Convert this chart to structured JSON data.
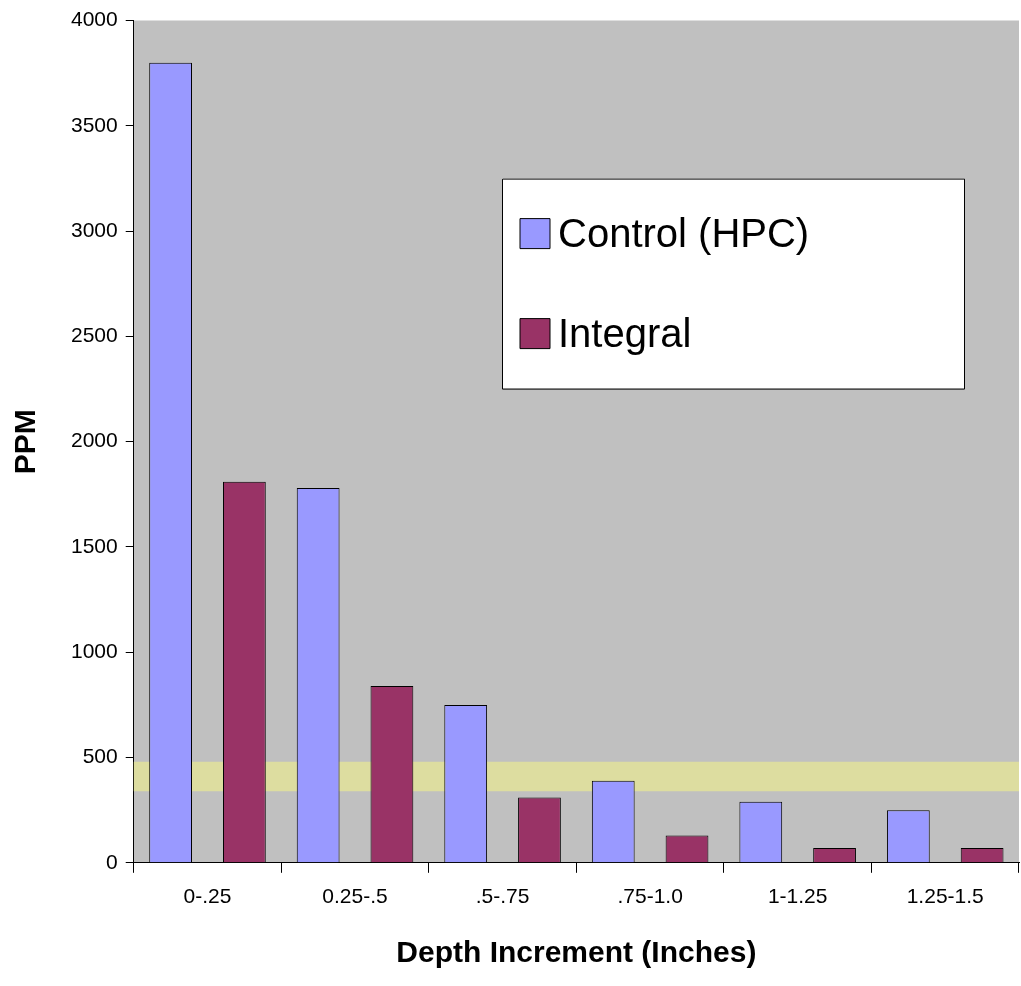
{
  "chart_data": {
    "type": "bar",
    "xlabel": "Depth Increment (Inches)",
    "ylabel": "PPM",
    "categories": [
      "0-.25",
      "0.25-.5",
      ".5-.75",
      ".75-1.0",
      "1-1.25",
      "1.25-1.5"
    ],
    "series": [
      {
        "name": "Control (HPC)",
        "color": "#9999ff",
        "values": [
          3800,
          1780,
          750,
          390,
          290,
          250
        ]
      },
      {
        "name": "Integral",
        "color": "#993366",
        "values": [
          1810,
          840,
          310,
          130,
          70,
          70
        ]
      }
    ],
    "ylim": [
      0,
      4000
    ],
    "yticks": [
      0,
      500,
      1000,
      1500,
      2000,
      2500,
      3000,
      3500,
      4000
    ],
    "bands": [
      {
        "axis": "y",
        "from": 340,
        "to": 480,
        "color": "#f0f08a"
      }
    ],
    "grid": false,
    "legend": "top right"
  }
}
